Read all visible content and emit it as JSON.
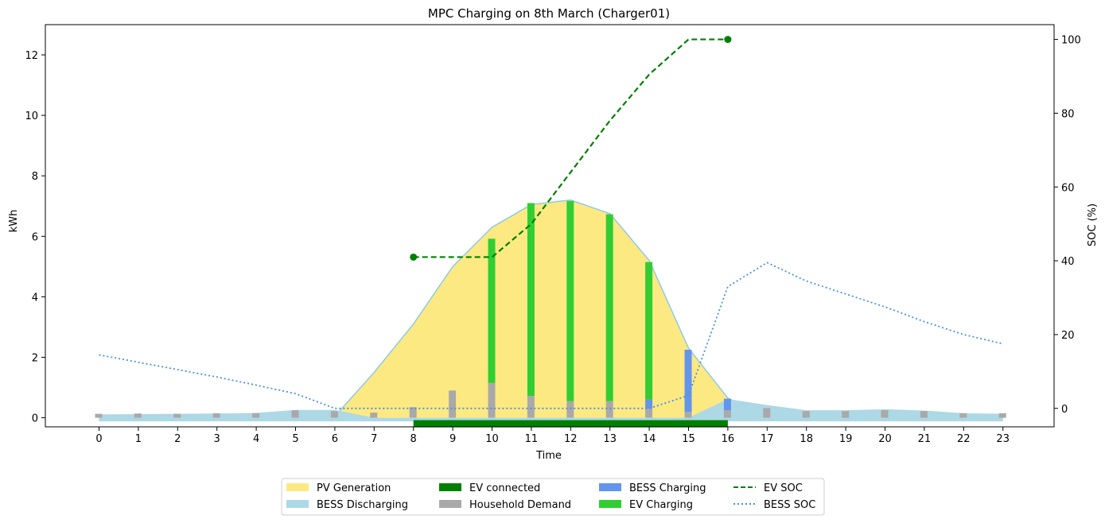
{
  "chart_data": {
    "type": "bar",
    "title": "MPC Charging on 8th March (Charger01)",
    "xlabel": "Time",
    "ylabel": "kWh",
    "y2label": "SOC (%)",
    "x": [
      0,
      1,
      2,
      3,
      4,
      5,
      6,
      7,
      8,
      9,
      10,
      11,
      12,
      13,
      14,
      15,
      16,
      17,
      18,
      19,
      20,
      21,
      22,
      23
    ],
    "x_ticks": [
      "0",
      "1",
      "2",
      "3",
      "4",
      "5",
      "6",
      "7",
      "8",
      "9",
      "10",
      "11",
      "12",
      "13",
      "14",
      "15",
      "16",
      "17",
      "18",
      "19",
      "20",
      "21",
      "22",
      "23"
    ],
    "ylim": [
      -0.3,
      13.0
    ],
    "y_ticks": [
      0,
      2,
      4,
      6,
      8,
      10,
      12
    ],
    "y2lim": [
      -5,
      104
    ],
    "y2_ticks": [
      0,
      20,
      40,
      60,
      80,
      100
    ],
    "grid": false,
    "legend_position": "bottom-center",
    "series": [
      {
        "name": "PV Generation",
        "kind": "area",
        "color": "#fde982",
        "values": [
          0,
          0,
          0,
          0,
          0,
          0,
          0.05,
          1.5,
          3.1,
          5.0,
          6.3,
          7.05,
          7.2,
          6.75,
          5.2,
          2.3,
          0.65,
          0,
          0,
          0,
          0,
          0,
          0,
          0
        ]
      },
      {
        "name": "BESS Discharging",
        "kind": "area",
        "color": "#add8e6",
        "values": [
          0.11,
          0.12,
          0.13,
          0.14,
          0.16,
          0.26,
          0.26,
          0,
          0,
          0,
          0,
          0,
          0,
          0,
          0,
          0,
          0.62,
          0.42,
          0.25,
          0.25,
          0.28,
          0.24,
          0.15,
          0.13
        ]
      },
      {
        "name": "EV connected",
        "kind": "span",
        "color": "#008000",
        "start": 8,
        "end": 16
      },
      {
        "name": "Household Demand",
        "kind": "bar",
        "color": "#a9a9a9",
        "values": [
          0.13,
          0.14,
          0.13,
          0.15,
          0.15,
          0.25,
          0.22,
          0.17,
          0.35,
          0.9,
          1.15,
          0.72,
          0.55,
          0.55,
          0.3,
          0.2,
          0.25,
          0.32,
          0.22,
          0.22,
          0.25,
          0.22,
          0.15,
          0.15
        ]
      },
      {
        "name": "BESS Charging",
        "kind": "bar",
        "color": "#6495ed",
        "values": [
          0,
          0,
          0,
          0,
          0,
          0,
          0,
          0,
          0,
          0,
          0,
          0,
          0,
          0,
          0.3,
          2.05,
          0.38,
          0,
          0,
          0,
          0,
          0,
          0,
          0
        ]
      },
      {
        "name": "EV Charging",
        "kind": "bar",
        "color": "#32cd32",
        "values": [
          0,
          0,
          0,
          0,
          0,
          0,
          0,
          0,
          0,
          0,
          4.77,
          6.38,
          6.62,
          6.18,
          4.55,
          0,
          0,
          0,
          0,
          0,
          0,
          0,
          0,
          0
        ]
      },
      {
        "name": "EV SOC",
        "kind": "line",
        "axis": "right",
        "color": "#008000",
        "style": "dashed",
        "x": [
          8,
          9,
          10,
          11,
          12,
          13,
          14,
          15,
          16
        ],
        "values": [
          41,
          41,
          41,
          50,
          64,
          78,
          90.5,
          100,
          100
        ]
      },
      {
        "name": "BESS SOC",
        "kind": "line",
        "axis": "right",
        "color": "#4a90e2",
        "style": "dotted",
        "x": [
          0,
          1,
          2,
          3,
          4,
          5,
          6,
          7,
          8,
          9,
          10,
          11,
          12,
          13,
          14,
          15,
          16,
          17,
          18,
          19,
          20,
          21,
          22,
          23
        ],
        "values": [
          14.5,
          12.5,
          10.5,
          8.5,
          6.3,
          4,
          0,
          0,
          0,
          0,
          0,
          0,
          0,
          0,
          0,
          3.5,
          33,
          39.5,
          34.5,
          31,
          27.5,
          23.5,
          20,
          17.5
        ]
      }
    ],
    "legend": [
      [
        "PV Generation",
        "BESS Discharging"
      ],
      [
        "EV connected",
        "Household Demand"
      ],
      [
        "BESS Charging",
        "EV Charging"
      ],
      [
        "EV SOC",
        "BESS SOC"
      ]
    ]
  }
}
